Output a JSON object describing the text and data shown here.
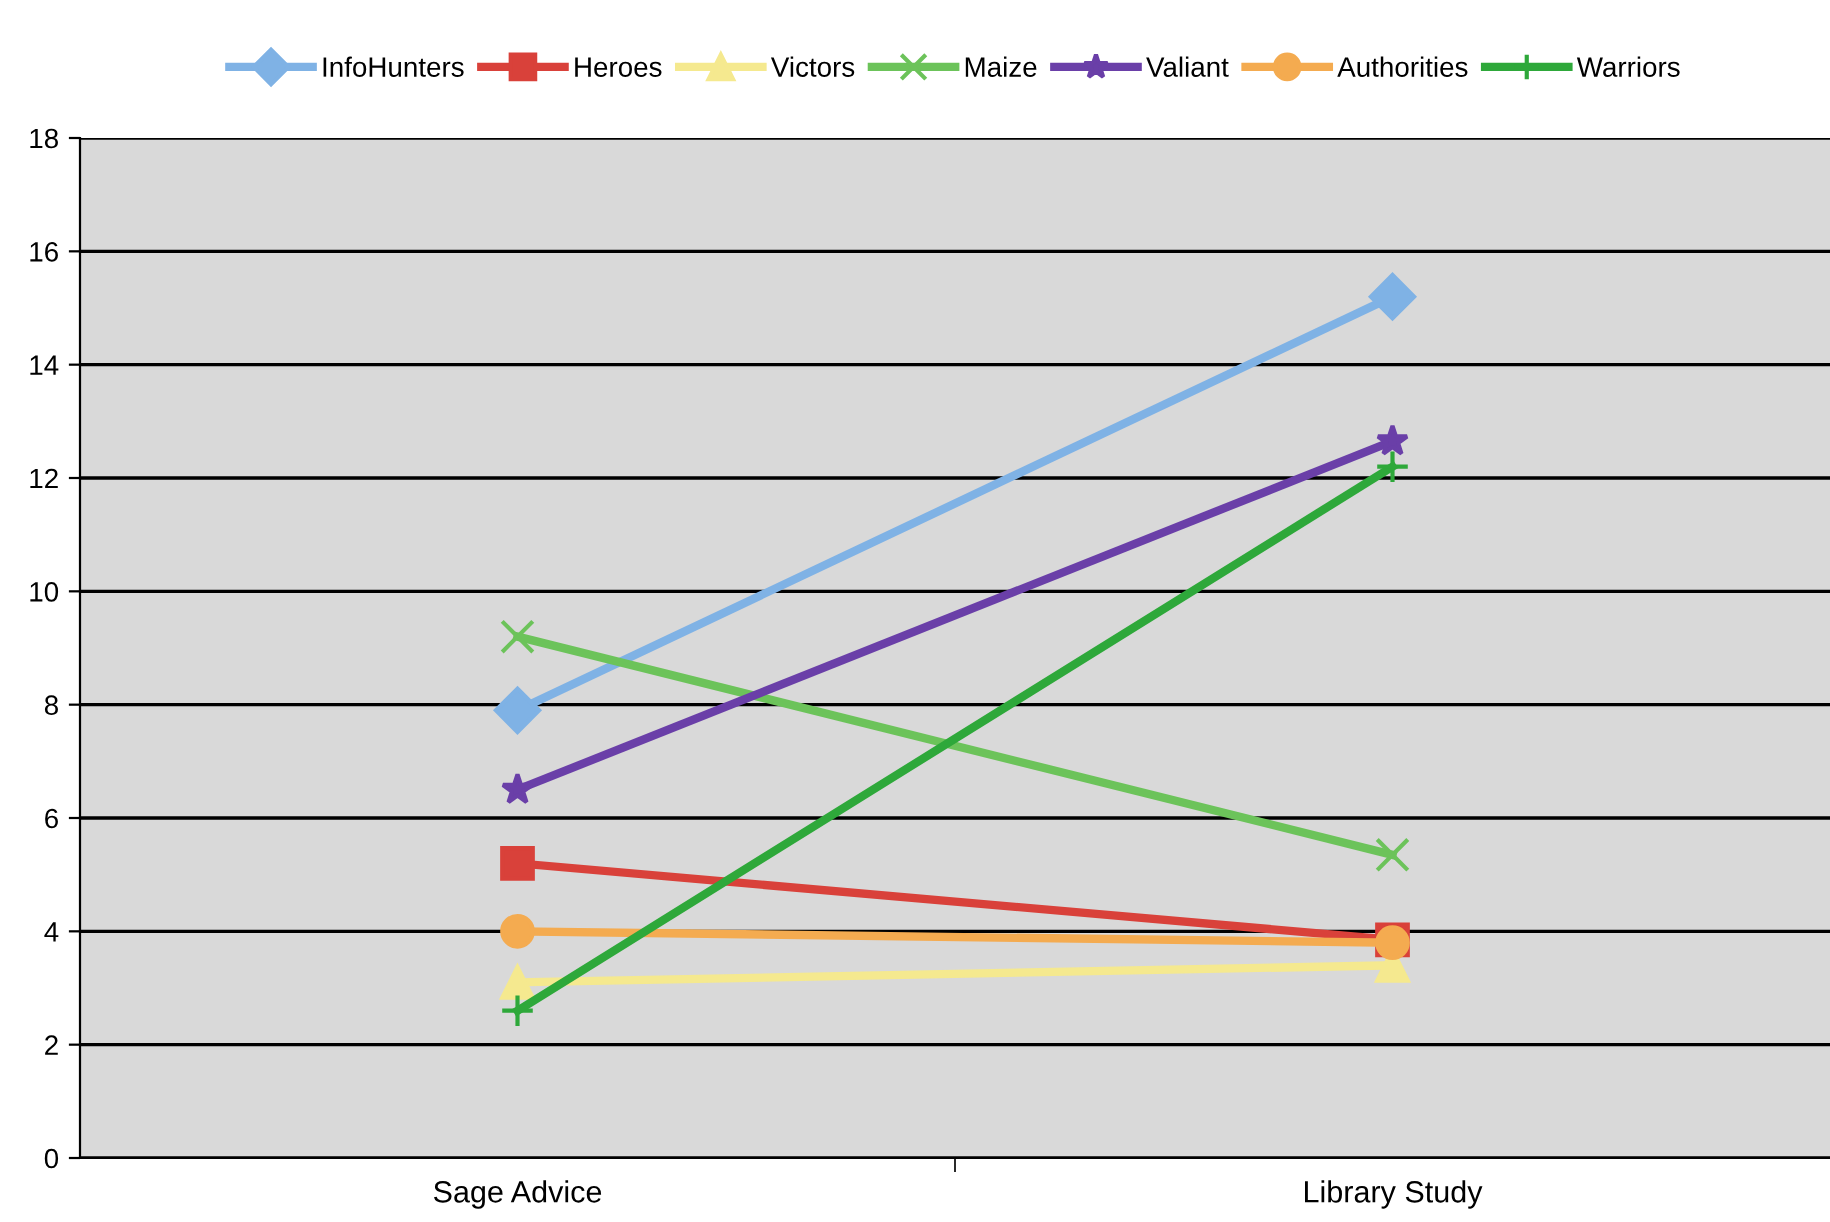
{
  "chart_data": {
    "type": "line",
    "categories": [
      "Sage Advice",
      "Library Study"
    ],
    "series": [
      {
        "name": "InfoHunters",
        "color": "#7fb2e5",
        "marker": "diamond",
        "values": [
          7.9,
          15.2
        ]
      },
      {
        "name": "Heroes",
        "color": "#d9413a",
        "marker": "square",
        "values": [
          5.2,
          3.85
        ]
      },
      {
        "name": "Victors",
        "color": "#f5e98f",
        "marker": "triangle",
        "values": [
          3.1,
          3.4
        ]
      },
      {
        "name": "Maize",
        "color": "#6cc35a",
        "marker": "cross",
        "values": [
          9.2,
          5.35
        ]
      },
      {
        "name": "Valiant",
        "color": "#6a3fa8",
        "marker": "star",
        "values": [
          6.5,
          12.65
        ]
      },
      {
        "name": "Authorities",
        "color": "#f4ab50",
        "marker": "circle",
        "values": [
          4.0,
          3.8
        ]
      },
      {
        "name": "Warriors",
        "color": "#2ea83a",
        "marker": "plus",
        "values": [
          2.6,
          12.2
        ]
      }
    ],
    "ylim": [
      0,
      18
    ],
    "yticks": [
      0,
      2,
      4,
      6,
      8,
      10,
      12,
      14,
      16,
      18
    ],
    "grid": "y",
    "legend": "top",
    "line_style": "solid"
  }
}
